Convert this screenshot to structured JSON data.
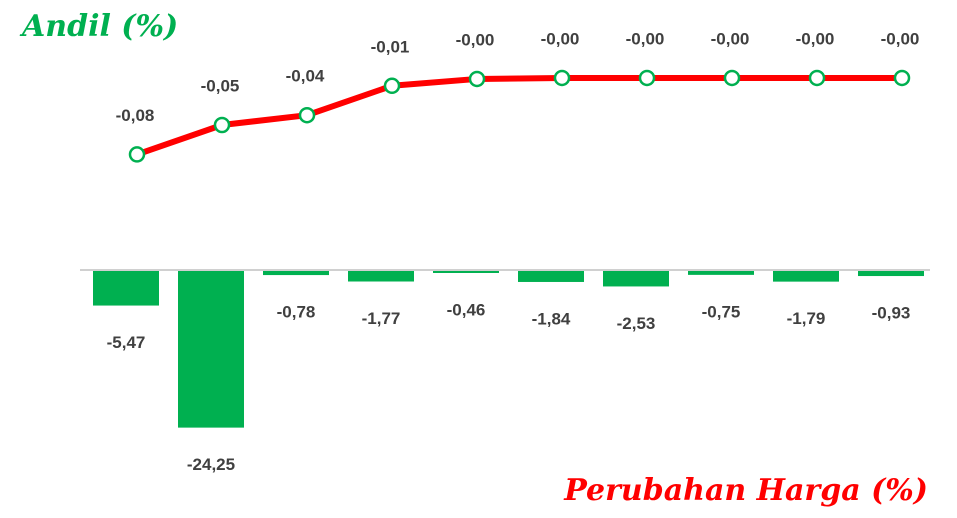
{
  "chart_data": [
    {
      "type": "line",
      "title": "Andil (%)",
      "categories": [
        null,
        null,
        null,
        null,
        null,
        null,
        null,
        null,
        null,
        null
      ],
      "series": [
        {
          "name": "Andil (%)",
          "color": "#ff0000",
          "marker_color": "#00b050",
          "values": [
            -0.08,
            -0.05,
            -0.04,
            -0.01,
            -0.003,
            -0.002,
            -0.002,
            -0.002,
            -0.002,
            -0.002
          ],
          "value_labels": [
            "-0,08",
            "-0,05",
            "-0,04",
            "-0,01",
            "-0,00",
            "-0,00",
            "-0,00",
            "-0,00",
            "-0,00",
            "-0,00"
          ]
        }
      ],
      "ylim": [
        -0.1,
        0
      ]
    },
    {
      "type": "bar",
      "title": "Perubahan Harga (%)",
      "categories": [
        null,
        null,
        null,
        null,
        null,
        null,
        null,
        null,
        null,
        null
      ],
      "series": [
        {
          "name": "Perubahan Harga (%)",
          "color": "#00b050",
          "values": [
            -5.47,
            -24.25,
            -0.78,
            -1.77,
            -0.46,
            -1.84,
            -2.53,
            -0.75,
            -1.79,
            -0.93
          ],
          "value_labels": [
            "-5,47",
            "-24,25",
            "-0,78",
            "-1,77",
            "-0,46",
            "-1,84",
            "-2,53",
            "-0,75",
            "-1,79",
            "-0,93"
          ]
        }
      ],
      "ylim": [
        -30,
        0
      ]
    }
  ]
}
